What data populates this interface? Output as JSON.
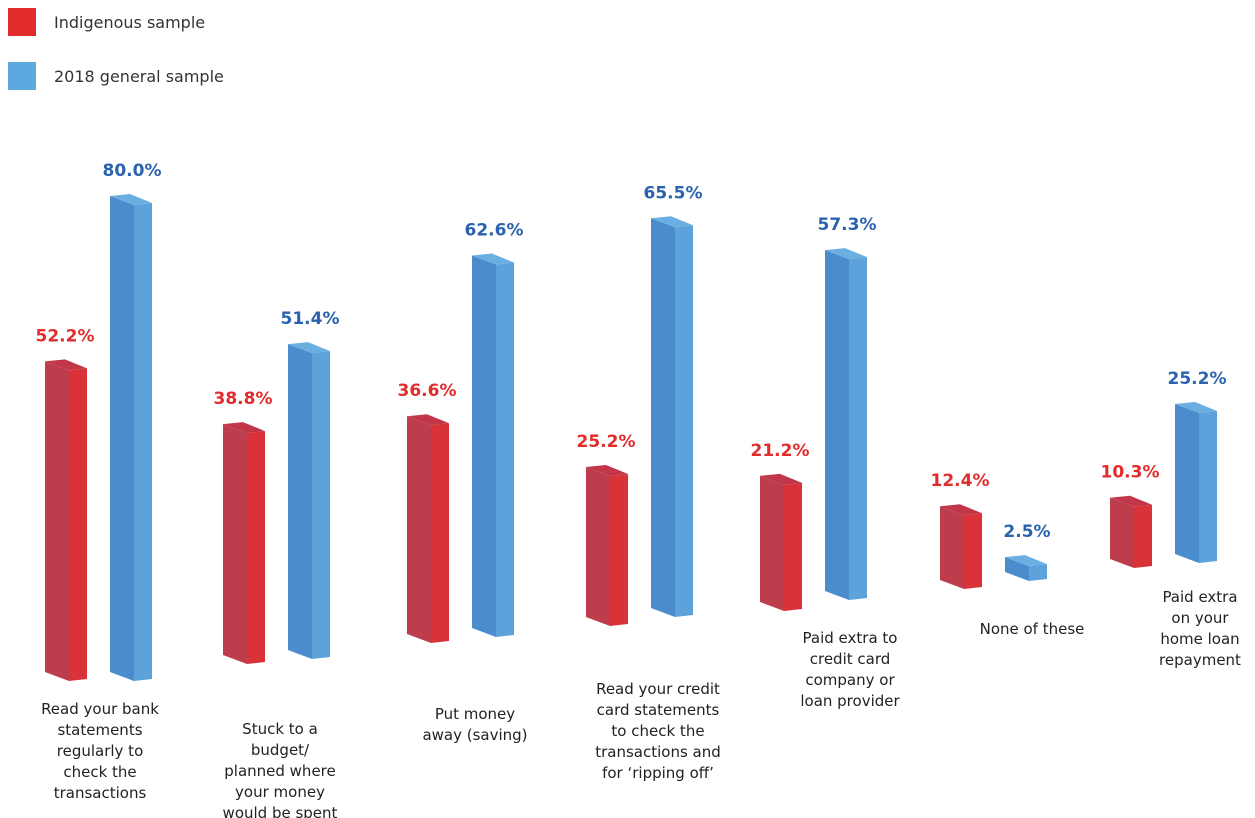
{
  "legend": [
    {
      "label": "Indigenous sample",
      "color": "#e22b2b"
    },
    {
      "label": "2018 general sample",
      "color": "#5da9df"
    }
  ],
  "chart_data": {
    "type": "bar",
    "categories": [
      [
        "Read your bank",
        "statements",
        "regularly to",
        "check the",
        "transactions"
      ],
      [
        "Stuck to a",
        "budget/",
        "planned where",
        "your money",
        "would be spent"
      ],
      [
        "Put money",
        "away (saving)"
      ],
      [
        "Read your credit",
        "card statements",
        "to check the",
        "transactions and",
        "for ‘ripping off’"
      ],
      [
        "Paid extra to",
        "credit card",
        "company or",
        "loan provider"
      ],
      [
        "None of these"
      ],
      [
        "Paid extra",
        "on your",
        "home loan",
        "repayment"
      ]
    ],
    "series": [
      {
        "name": "Indigenous sample",
        "values": [
          52.2,
          38.8,
          36.6,
          25.2,
          21.2,
          12.4,
          10.3
        ],
        "labels": [
          "52.2%",
          "38.8%",
          "36.6%",
          "25.2%",
          "21.2%",
          "12.4%",
          "10.3%"
        ]
      },
      {
        "name": "2018 general sample",
        "values": [
          80.0,
          51.4,
          62.6,
          65.5,
          57.3,
          2.5,
          25.2
        ],
        "labels": [
          "80.0%",
          "51.4%",
          "62.6%",
          "65.5%",
          "57.3%",
          "2.5%",
          "25.2%"
        ]
      }
    ],
    "colors": {
      "red_front": "#d93339",
      "red_side": "#bd3d4d",
      "red_top": "#c2364a",
      "red_label": "#e22b2b",
      "blue_front": "#5ba3da",
      "blue_side": "#4b8ccc",
      "blue_top": "#6aaee2",
      "blue_label": "#2a62ad"
    },
    "title": "",
    "xlabel": "",
    "ylabel": "",
    "ylim": [
      0,
      80
    ]
  }
}
